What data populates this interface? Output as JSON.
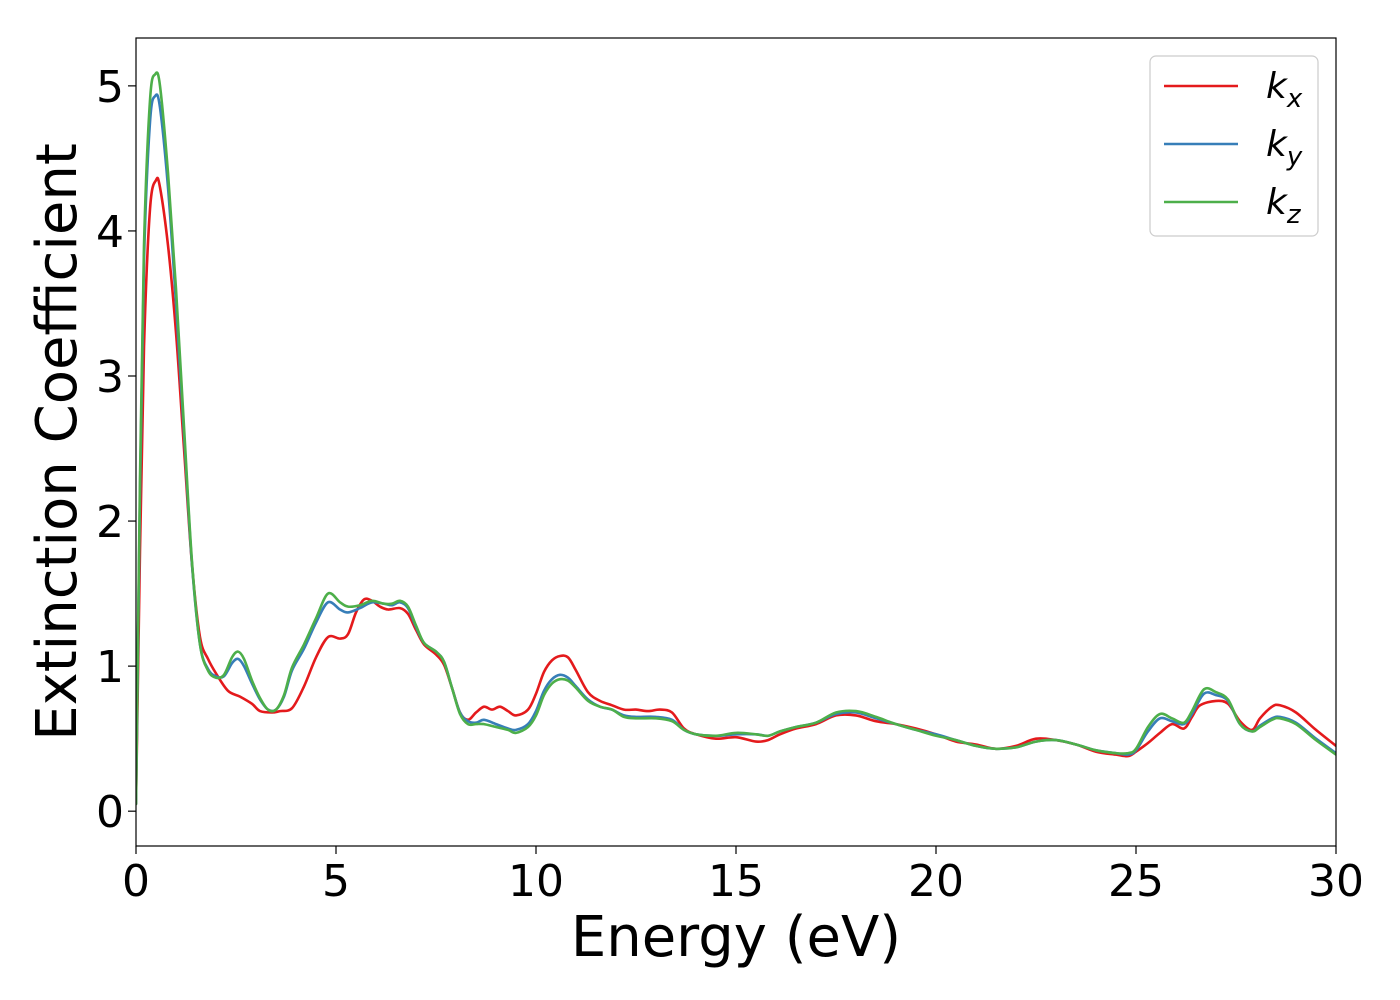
{
  "chart_data": {
    "type": "line",
    "xlabel": "Energy (eV)",
    "ylabel": "Extinction Coefficient",
    "xlim": [
      0,
      30
    ],
    "ylim": [
      -0.24,
      5.33
    ],
    "xticks": [
      0,
      5,
      10,
      15,
      20,
      25,
      30
    ],
    "yticks": [
      0,
      1,
      2,
      3,
      4,
      5
    ],
    "grid": false,
    "legend_position": "top-right",
    "series": [
      {
        "name": "k",
        "subscript": "x",
        "color": "#e41a1c",
        "points": [
          [
            0,
            0.05
          ],
          [
            0.1,
            1.8
          ],
          [
            0.2,
            3.2
          ],
          [
            0.35,
            4.15
          ],
          [
            0.5,
            4.35
          ],
          [
            0.6,
            4.3
          ],
          [
            0.8,
            3.9
          ],
          [
            1.0,
            3.3
          ],
          [
            1.2,
            2.5
          ],
          [
            1.4,
            1.7
          ],
          [
            1.6,
            1.2
          ],
          [
            1.8,
            1.05
          ],
          [
            2.0,
            0.95
          ],
          [
            2.3,
            0.83
          ],
          [
            2.6,
            0.79
          ],
          [
            2.9,
            0.74
          ],
          [
            3.1,
            0.69
          ],
          [
            3.4,
            0.68
          ],
          [
            3.6,
            0.69
          ],
          [
            3.9,
            0.71
          ],
          [
            4.2,
            0.86
          ],
          [
            4.5,
            1.06
          ],
          [
            4.8,
            1.2
          ],
          [
            5.1,
            1.19
          ],
          [
            5.3,
            1.22
          ],
          [
            5.5,
            1.37
          ],
          [
            5.7,
            1.46
          ],
          [
            5.9,
            1.45
          ],
          [
            6.1,
            1.41
          ],
          [
            6.3,
            1.39
          ],
          [
            6.6,
            1.4
          ],
          [
            6.8,
            1.36
          ],
          [
            7.0,
            1.25
          ],
          [
            7.2,
            1.15
          ],
          [
            7.5,
            1.08
          ],
          [
            7.7,
            1.01
          ],
          [
            7.9,
            0.85
          ],
          [
            8.1,
            0.68
          ],
          [
            8.3,
            0.63
          ],
          [
            8.5,
            0.68
          ],
          [
            8.7,
            0.72
          ],
          [
            8.9,
            0.7
          ],
          [
            9.1,
            0.72
          ],
          [
            9.3,
            0.69
          ],
          [
            9.5,
            0.66
          ],
          [
            9.8,
            0.7
          ],
          [
            10.0,
            0.81
          ],
          [
            10.2,
            0.96
          ],
          [
            10.4,
            1.04
          ],
          [
            10.6,
            1.07
          ],
          [
            10.8,
            1.06
          ],
          [
            11.0,
            0.97
          ],
          [
            11.3,
            0.82
          ],
          [
            11.6,
            0.76
          ],
          [
            11.9,
            0.73
          ],
          [
            12.2,
            0.7
          ],
          [
            12.5,
            0.7
          ],
          [
            12.8,
            0.69
          ],
          [
            13.1,
            0.7
          ],
          [
            13.4,
            0.68
          ],
          [
            13.7,
            0.57
          ],
          [
            14.0,
            0.53
          ],
          [
            14.5,
            0.5
          ],
          [
            15.0,
            0.51
          ],
          [
            15.5,
            0.48
          ],
          [
            15.8,
            0.49
          ],
          [
            16.1,
            0.53
          ],
          [
            16.5,
            0.57
          ],
          [
            17.0,
            0.6
          ],
          [
            17.5,
            0.66
          ],
          [
            18.0,
            0.66
          ],
          [
            18.5,
            0.62
          ],
          [
            19.0,
            0.6
          ],
          [
            19.5,
            0.57
          ],
          [
            20.0,
            0.53
          ],
          [
            20.5,
            0.48
          ],
          [
            21.0,
            0.46
          ],
          [
            21.5,
            0.43
          ],
          [
            22.0,
            0.45
          ],
          [
            22.5,
            0.5
          ],
          [
            23.0,
            0.49
          ],
          [
            23.5,
            0.46
          ],
          [
            24.0,
            0.41
          ],
          [
            24.5,
            0.39
          ],
          [
            24.8,
            0.38
          ],
          [
            25.0,
            0.41
          ],
          [
            25.3,
            0.47
          ],
          [
            25.6,
            0.54
          ],
          [
            25.9,
            0.6
          ],
          [
            26.2,
            0.57
          ],
          [
            26.4,
            0.65
          ],
          [
            26.6,
            0.73
          ],
          [
            27.0,
            0.76
          ],
          [
            27.3,
            0.74
          ],
          [
            27.6,
            0.62
          ],
          [
            27.9,
            0.56
          ],
          [
            28.1,
            0.64
          ],
          [
            28.4,
            0.72
          ],
          [
            28.6,
            0.73
          ],
          [
            29.0,
            0.68
          ],
          [
            29.5,
            0.56
          ],
          [
            30.0,
            0.45
          ]
        ]
      },
      {
        "name": "k",
        "subscript": "y",
        "color": "#377eb8",
        "points": [
          [
            0,
            0.05
          ],
          [
            0.1,
            2.2
          ],
          [
            0.2,
            3.8
          ],
          [
            0.35,
            4.75
          ],
          [
            0.48,
            4.93
          ],
          [
            0.6,
            4.85
          ],
          [
            0.8,
            4.3
          ],
          [
            1.0,
            3.5
          ],
          [
            1.2,
            2.6
          ],
          [
            1.4,
            1.7
          ],
          [
            1.6,
            1.15
          ],
          [
            1.8,
            0.98
          ],
          [
            2.0,
            0.93
          ],
          [
            2.2,
            0.93
          ],
          [
            2.4,
            1.02
          ],
          [
            2.55,
            1.05
          ],
          [
            2.7,
            1.0
          ],
          [
            2.9,
            0.88
          ],
          [
            3.1,
            0.77
          ],
          [
            3.3,
            0.7
          ],
          [
            3.5,
            0.7
          ],
          [
            3.7,
            0.79
          ],
          [
            3.9,
            0.97
          ],
          [
            4.2,
            1.12
          ],
          [
            4.5,
            1.3
          ],
          [
            4.8,
            1.44
          ],
          [
            5.1,
            1.39
          ],
          [
            5.3,
            1.37
          ],
          [
            5.6,
            1.4
          ],
          [
            5.9,
            1.44
          ],
          [
            6.2,
            1.43
          ],
          [
            6.4,
            1.42
          ],
          [
            6.6,
            1.44
          ],
          [
            6.8,
            1.4
          ],
          [
            7.0,
            1.27
          ],
          [
            7.2,
            1.16
          ],
          [
            7.5,
            1.1
          ],
          [
            7.7,
            1.03
          ],
          [
            7.9,
            0.85
          ],
          [
            8.1,
            0.68
          ],
          [
            8.3,
            0.62
          ],
          [
            8.5,
            0.61
          ],
          [
            8.7,
            0.63
          ],
          [
            9.0,
            0.6
          ],
          [
            9.3,
            0.57
          ],
          [
            9.5,
            0.56
          ],
          [
            9.8,
            0.6
          ],
          [
            10.0,
            0.69
          ],
          [
            10.2,
            0.83
          ],
          [
            10.4,
            0.91
          ],
          [
            10.6,
            0.94
          ],
          [
            10.8,
            0.92
          ],
          [
            11.0,
            0.86
          ],
          [
            11.3,
            0.77
          ],
          [
            11.6,
            0.72
          ],
          [
            11.9,
            0.7
          ],
          [
            12.2,
            0.66
          ],
          [
            12.5,
            0.65
          ],
          [
            13.0,
            0.65
          ],
          [
            13.4,
            0.63
          ],
          [
            13.7,
            0.56
          ],
          [
            14.0,
            0.53
          ],
          [
            14.5,
            0.52
          ],
          [
            15.0,
            0.53
          ],
          [
            15.5,
            0.53
          ],
          [
            15.8,
            0.52
          ],
          [
            16.1,
            0.55
          ],
          [
            16.5,
            0.58
          ],
          [
            17.0,
            0.61
          ],
          [
            17.5,
            0.67
          ],
          [
            18.0,
            0.68
          ],
          [
            18.5,
            0.64
          ],
          [
            19.0,
            0.6
          ],
          [
            19.5,
            0.56
          ],
          [
            20.0,
            0.53
          ],
          [
            20.5,
            0.49
          ],
          [
            21.0,
            0.45
          ],
          [
            21.5,
            0.43
          ],
          [
            22.0,
            0.44
          ],
          [
            22.5,
            0.48
          ],
          [
            23.0,
            0.49
          ],
          [
            23.5,
            0.46
          ],
          [
            24.0,
            0.42
          ],
          [
            24.5,
            0.4
          ],
          [
            24.8,
            0.39
          ],
          [
            25.0,
            0.42
          ],
          [
            25.3,
            0.55
          ],
          [
            25.6,
            0.64
          ],
          [
            25.9,
            0.62
          ],
          [
            26.2,
            0.6
          ],
          [
            26.4,
            0.67
          ],
          [
            26.7,
            0.81
          ],
          [
            27.0,
            0.8
          ],
          [
            27.3,
            0.76
          ],
          [
            27.6,
            0.6
          ],
          [
            27.9,
            0.55
          ],
          [
            28.1,
            0.59
          ],
          [
            28.4,
            0.64
          ],
          [
            28.6,
            0.65
          ],
          [
            29.0,
            0.61
          ],
          [
            29.5,
            0.5
          ],
          [
            30.0,
            0.4
          ]
        ]
      },
      {
        "name": "k",
        "subscript": "z",
        "color": "#4daf4a",
        "points": [
          [
            0,
            0.05
          ],
          [
            0.1,
            2.3
          ],
          [
            0.2,
            3.9
          ],
          [
            0.35,
            4.9
          ],
          [
            0.48,
            5.08
          ],
          [
            0.6,
            5.0
          ],
          [
            0.8,
            4.4
          ],
          [
            1.0,
            3.6
          ],
          [
            1.2,
            2.65
          ],
          [
            1.4,
            1.72
          ],
          [
            1.6,
            1.15
          ],
          [
            1.8,
            0.97
          ],
          [
            2.0,
            0.92
          ],
          [
            2.2,
            0.94
          ],
          [
            2.4,
            1.06
          ],
          [
            2.55,
            1.1
          ],
          [
            2.7,
            1.05
          ],
          [
            2.9,
            0.9
          ],
          [
            3.1,
            0.78
          ],
          [
            3.3,
            0.7
          ],
          [
            3.5,
            0.7
          ],
          [
            3.7,
            0.8
          ],
          [
            3.9,
            0.99
          ],
          [
            4.2,
            1.15
          ],
          [
            4.5,
            1.33
          ],
          [
            4.8,
            1.5
          ],
          [
            5.1,
            1.44
          ],
          [
            5.3,
            1.41
          ],
          [
            5.6,
            1.42
          ],
          [
            5.9,
            1.45
          ],
          [
            6.2,
            1.43
          ],
          [
            6.4,
            1.43
          ],
          [
            6.6,
            1.45
          ],
          [
            6.8,
            1.41
          ],
          [
            7.0,
            1.28
          ],
          [
            7.2,
            1.16
          ],
          [
            7.5,
            1.1
          ],
          [
            7.7,
            1.03
          ],
          [
            7.9,
            0.85
          ],
          [
            8.1,
            0.67
          ],
          [
            8.3,
            0.6
          ],
          [
            8.5,
            0.6
          ],
          [
            8.7,
            0.6
          ],
          [
            9.0,
            0.58
          ],
          [
            9.3,
            0.56
          ],
          [
            9.5,
            0.54
          ],
          [
            9.8,
            0.58
          ],
          [
            10.0,
            0.66
          ],
          [
            10.2,
            0.8
          ],
          [
            10.4,
            0.88
          ],
          [
            10.6,
            0.91
          ],
          [
            10.8,
            0.9
          ],
          [
            11.0,
            0.85
          ],
          [
            11.3,
            0.76
          ],
          [
            11.6,
            0.72
          ],
          [
            11.9,
            0.7
          ],
          [
            12.2,
            0.65
          ],
          [
            12.5,
            0.64
          ],
          [
            13.0,
            0.64
          ],
          [
            13.4,
            0.62
          ],
          [
            13.7,
            0.56
          ],
          [
            14.0,
            0.53
          ],
          [
            14.5,
            0.52
          ],
          [
            15.0,
            0.54
          ],
          [
            15.5,
            0.53
          ],
          [
            15.8,
            0.52
          ],
          [
            16.1,
            0.55
          ],
          [
            16.5,
            0.58
          ],
          [
            17.0,
            0.61
          ],
          [
            17.5,
            0.68
          ],
          [
            18.0,
            0.69
          ],
          [
            18.5,
            0.65
          ],
          [
            19.0,
            0.6
          ],
          [
            19.5,
            0.56
          ],
          [
            20.0,
            0.52
          ],
          [
            20.5,
            0.49
          ],
          [
            21.0,
            0.45
          ],
          [
            21.5,
            0.43
          ],
          [
            22.0,
            0.44
          ],
          [
            22.5,
            0.48
          ],
          [
            23.0,
            0.49
          ],
          [
            23.5,
            0.46
          ],
          [
            24.0,
            0.42
          ],
          [
            24.5,
            0.4
          ],
          [
            24.8,
            0.4
          ],
          [
            25.0,
            0.43
          ],
          [
            25.3,
            0.58
          ],
          [
            25.6,
            0.67
          ],
          [
            25.9,
            0.64
          ],
          [
            26.2,
            0.61
          ],
          [
            26.4,
            0.69
          ],
          [
            26.7,
            0.84
          ],
          [
            27.0,
            0.82
          ],
          [
            27.3,
            0.77
          ],
          [
            27.6,
            0.6
          ],
          [
            27.9,
            0.55
          ],
          [
            28.1,
            0.58
          ],
          [
            28.4,
            0.63
          ],
          [
            28.6,
            0.64
          ],
          [
            29.0,
            0.6
          ],
          [
            29.5,
            0.49
          ],
          [
            30.0,
            0.39
          ]
        ]
      }
    ]
  }
}
